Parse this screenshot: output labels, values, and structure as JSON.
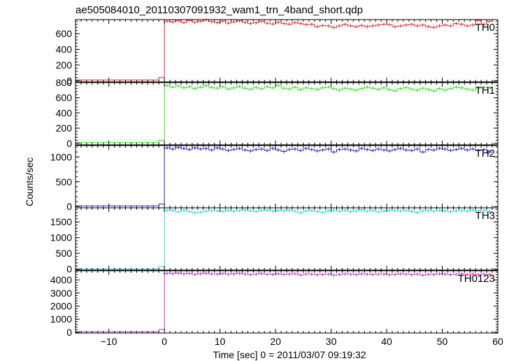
{
  "chart_data": {
    "type": "line",
    "title": "ae505084010_20110307091932_wam1_trn_4band_short.qdp",
    "xlabel": "Time [sec] 0 = 2011/03/07 09:19:32",
    "ylabel": "Counts/sec",
    "xlim": [
      -16,
      60
    ],
    "x_ticks": [
      -10,
      0,
      10,
      20,
      30,
      40,
      50,
      60
    ],
    "x_tick_labels": [
      "−10",
      "0",
      "10",
      "20",
      "30",
      "40",
      "50",
      "60"
    ],
    "grid": false,
    "bin_width": 1,
    "panels": [
      {
        "name": "TH0",
        "color": "#e8282b",
        "ylim": [
          -15,
          780
        ],
        "y_ticks": [
          0,
          200,
          400,
          600
        ],
        "y_tick_labels": [
          "0",
          "200",
          "400",
          "600"
        ],
        "x": [
          -16,
          -15,
          -14,
          -13,
          -12,
          -11,
          -10,
          -9,
          -8,
          -7,
          -6,
          -5,
          -4,
          -3,
          -2,
          -1,
          0,
          1,
          2,
          3,
          4,
          5,
          6,
          7,
          8,
          9,
          10,
          11,
          12,
          13,
          14,
          15,
          16,
          17,
          18,
          19,
          20,
          21,
          22,
          23,
          24,
          25,
          26,
          27,
          28,
          29,
          30,
          31,
          32,
          33,
          34,
          35,
          36,
          37,
          38,
          39,
          40,
          41,
          42,
          43,
          44,
          45,
          46,
          47,
          48,
          49,
          50,
          51,
          52,
          53,
          54,
          55,
          56,
          57,
          58
        ],
        "values": [
          10,
          10,
          10,
          10,
          10,
          10,
          10,
          10,
          10,
          10,
          10,
          10,
          10,
          10,
          10,
          40,
          760,
          750,
          765,
          740,
          770,
          745,
          760,
          775,
          755,
          740,
          760,
          735,
          750,
          765,
          745,
          730,
          740,
          760,
          735,
          725,
          745,
          730,
          720,
          740,
          730,
          715,
          720,
          690,
          705,
          700,
          680,
          700,
          720,
          700,
          690,
          705,
          690,
          700,
          710,
          720,
          715,
          690,
          700,
          710,
          720,
          700,
          710,
          690,
          680,
          700,
          710,
          700,
          730,
          720,
          700,
          710,
          770,
          720,
          760
        ]
      },
      {
        "name": "TH1",
        "color": "#2ee020",
        "ylim": [
          -20,
          800
        ],
        "y_ticks": [
          0,
          200,
          400,
          600,
          800
        ],
        "y_tick_labels": [
          "0",
          "200",
          "400",
          "600",
          "800"
        ],
        "x": [
          -16,
          -15,
          -14,
          -13,
          -12,
          -11,
          -10,
          -9,
          -8,
          -7,
          -6,
          -5,
          -4,
          -3,
          -2,
          -1,
          0,
          1,
          2,
          3,
          4,
          5,
          6,
          7,
          8,
          9,
          10,
          11,
          12,
          13,
          14,
          15,
          16,
          17,
          18,
          19,
          20,
          21,
          22,
          23,
          24,
          25,
          26,
          27,
          28,
          29,
          30,
          31,
          32,
          33,
          34,
          35,
          36,
          37,
          38,
          39,
          40,
          41,
          42,
          43,
          44,
          45,
          46,
          47,
          48,
          49,
          50,
          51,
          52,
          53,
          54,
          55,
          56,
          57,
          58
        ],
        "values": [
          10,
          10,
          10,
          10,
          10,
          10,
          10,
          10,
          10,
          10,
          10,
          10,
          10,
          10,
          10,
          40,
          760,
          740,
          755,
          730,
          745,
          720,
          740,
          760,
          735,
          725,
          745,
          715,
          730,
          750,
          725,
          710,
          735,
          720,
          745,
          730,
          760,
          725,
          715,
          740,
          705,
          730,
          720,
          710,
          730,
          740,
          720,
          700,
          725,
          715,
          700,
          720,
          740,
          725,
          710,
          730,
          705,
          690,
          720,
          735,
          715,
          700,
          725,
          710,
          690,
          720,
          700,
          720,
          740,
          730,
          715,
          700,
          720,
          740,
          735
        ]
      },
      {
        "name": "TH2",
        "color": "#2222c8",
        "ylim": [
          -25,
          1230
        ],
        "y_ticks": [
          0,
          500,
          1000
        ],
        "y_tick_labels": [
          "0",
          "500",
          "1000"
        ],
        "x": [
          -16,
          -15,
          -14,
          -13,
          -12,
          -11,
          -10,
          -9,
          -8,
          -7,
          -6,
          -5,
          -4,
          -3,
          -2,
          -1,
          0,
          1,
          2,
          3,
          4,
          5,
          6,
          7,
          8,
          9,
          10,
          11,
          12,
          13,
          14,
          15,
          16,
          17,
          18,
          19,
          20,
          21,
          22,
          23,
          24,
          25,
          26,
          27,
          28,
          29,
          30,
          31,
          32,
          33,
          34,
          35,
          36,
          37,
          38,
          39,
          40,
          41,
          42,
          43,
          44,
          45,
          46,
          47,
          48,
          49,
          50,
          51,
          52,
          53,
          54,
          55,
          56,
          57,
          58
        ],
        "values": [
          15,
          15,
          15,
          15,
          15,
          15,
          15,
          15,
          15,
          15,
          15,
          15,
          15,
          15,
          15,
          50,
          1180,
          1160,
          1190,
          1170,
          1150,
          1180,
          1160,
          1170,
          1140,
          1180,
          1160,
          1130,
          1150,
          1170,
          1140,
          1120,
          1150,
          1160,
          1130,
          1170,
          1140,
          1110,
          1150,
          1160,
          1130,
          1170,
          1150,
          1120,
          1140,
          1160,
          1100,
          1150,
          1160,
          1140,
          1120,
          1170,
          1150,
          1130,
          1160,
          1140,
          1120,
          1150,
          1170,
          1140,
          1130,
          1160,
          1100,
          1150,
          1140,
          1170,
          1160,
          1130,
          1150,
          1170,
          1140,
          1160,
          1130,
          1150,
          1100
        ]
      },
      {
        "name": "TH3",
        "color": "#20d8e8",
        "ylim": [
          -30,
          1950
        ],
        "y_ticks": [
          0,
          500,
          1000,
          1500
        ],
        "y_tick_labels": [
          "0",
          "500",
          "1000",
          "1500"
        ],
        "x": [
          -16,
          -15,
          -14,
          -13,
          -12,
          -11,
          -10,
          -9,
          -8,
          -7,
          -6,
          -5,
          -4,
          -3,
          -2,
          -1,
          0,
          1,
          2,
          3,
          4,
          5,
          6,
          7,
          8,
          9,
          10,
          11,
          12,
          13,
          14,
          15,
          16,
          17,
          18,
          19,
          20,
          21,
          22,
          23,
          24,
          25,
          26,
          27,
          28,
          29,
          30,
          31,
          32,
          33,
          34,
          35,
          36,
          37,
          38,
          39,
          40,
          41,
          42,
          43,
          44,
          45,
          46,
          47,
          48,
          49,
          50,
          51,
          52,
          53,
          54,
          55,
          56,
          57,
          58
        ],
        "values": [
          5,
          5,
          5,
          5,
          5,
          5,
          5,
          5,
          5,
          5,
          5,
          5,
          5,
          5,
          5,
          80,
          1870,
          1860,
          1820,
          1870,
          1830,
          1790,
          1810,
          1840,
          1860,
          1850,
          1830,
          1870,
          1840,
          1860,
          1880,
          1850,
          1830,
          1860,
          1870,
          1840,
          1860,
          1850,
          1870,
          1840,
          1790,
          1850,
          1860,
          1830,
          1800,
          1850,
          1870,
          1840,
          1860,
          1830,
          1850,
          1880,
          1840,
          1860,
          1820,
          1850,
          1870,
          1860,
          1840,
          1860,
          1830,
          1800,
          1850,
          1860,
          1840,
          1870,
          1850,
          1820,
          1850,
          1860,
          1840,
          1870,
          1850,
          1860,
          1830
        ]
      },
      {
        "name": "TH0123",
        "color": "#d828c8",
        "ylim": [
          -60,
          4700
        ],
        "y_ticks": [
          0,
          1000,
          2000,
          3000,
          4000
        ],
        "y_tick_labels": [
          "0",
          "1000",
          "2000",
          "3000",
          "4000"
        ],
        "x": [
          -16,
          -15,
          -14,
          -13,
          -12,
          -11,
          -10,
          -9,
          -8,
          -7,
          -6,
          -5,
          -4,
          -3,
          -2,
          -1,
          0,
          1,
          2,
          3,
          4,
          5,
          6,
          7,
          8,
          9,
          10,
          11,
          12,
          13,
          14,
          15,
          16,
          17,
          18,
          19,
          20,
          21,
          22,
          23,
          24,
          25,
          26,
          27,
          28,
          29,
          30,
          31,
          32,
          33,
          34,
          35,
          36,
          37,
          38,
          39,
          40,
          41,
          42,
          43,
          44,
          45,
          46,
          47,
          48,
          49,
          50,
          51,
          52,
          53,
          54,
          55,
          56,
          57,
          58
        ],
        "values": [
          40,
          40,
          40,
          40,
          40,
          40,
          40,
          40,
          40,
          40,
          40,
          40,
          40,
          40,
          40,
          200,
          4500,
          4480,
          4520,
          4460,
          4490,
          4420,
          4470,
          4510,
          4450,
          4440,
          4490,
          4430,
          4460,
          4500,
          4450,
          4400,
          4440,
          4480,
          4430,
          4410,
          4460,
          4420,
          4440,
          4470,
          4380,
          4450,
          4430,
          4390,
          4410,
          4440,
          4370,
          4420,
          4450,
          4430,
          4400,
          4460,
          4430,
          4410,
          4440,
          4450,
          4390,
          4420,
          4460,
          4430,
          4400,
          4440,
          4360,
          4420,
          4410,
          4460,
          4440,
          4400,
          4430,
          4460,
          4420,
          4450,
          4400,
          4440,
          4420
        ]
      }
    ]
  }
}
